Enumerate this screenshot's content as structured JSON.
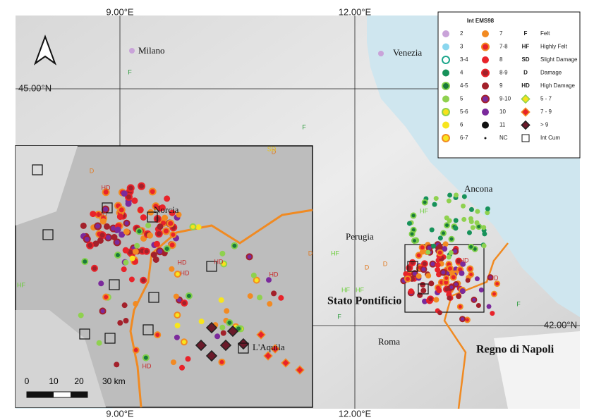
{
  "map": {
    "coords": {
      "top": [
        "9.00°E",
        "12.00°E"
      ],
      "bottom": [
        "9.00°E",
        "12.00°E"
      ],
      "left": "45.00°N",
      "right": "42.00°N"
    },
    "places": [
      "Milano",
      "Venezia",
      "Ancona",
      "Perugia",
      "Roma",
      "Norcia",
      "L'Aquila"
    ],
    "regions": [
      "Stato Pontificio",
      "Regno di Napoli"
    ],
    "scale": [
      "0",
      "10",
      "20",
      "30 km"
    ],
    "markers": [
      "F",
      "F",
      "HD",
      "HD",
      "HD",
      "HD",
      "HD",
      "HD",
      "HD",
      "D",
      "D",
      "D",
      "SD",
      "HF",
      "HF",
      "HF",
      "HF",
      "HF",
      "D",
      "D",
      "HD",
      "HD",
      "F",
      "F"
    ],
    "legend": {
      "title": "Int EMS98",
      "col1": [
        {
          "label": "2",
          "color": "#c9a3d9"
        },
        {
          "label": "3",
          "color": "#8ad6ee"
        },
        {
          "label": "3-4",
          "color": "#ffffff",
          "ring": "#1aa58a"
        },
        {
          "label": "4",
          "color": "#17925a"
        },
        {
          "label": "4-5",
          "color": "#1a7a3a",
          "ring": "#7fcf4a"
        },
        {
          "label": "5",
          "color": "#8fd14f"
        },
        {
          "label": "5-6",
          "color": "#f6e21a",
          "ring": "#8fd14f"
        },
        {
          "label": "6",
          "color": "#f7e51e"
        },
        {
          "label": "6-7",
          "color": "#f7e51e",
          "ring": "#f28a22"
        }
      ],
      "col2": [
        {
          "label": "7",
          "color": "#f28a22"
        },
        {
          "label": "7-8",
          "color": "#e8232a",
          "ring": "#f28a22"
        },
        {
          "label": "8",
          "color": "#e8232a"
        },
        {
          "label": "8-9",
          "color": "#a3212b",
          "ring": "#e8232a"
        },
        {
          "label": "9",
          "color": "#a3212b"
        },
        {
          "label": "9-10",
          "color": "#7b2a9c",
          "ring": "#a3212b"
        },
        {
          "label": "10",
          "color": "#7b2a9c"
        },
        {
          "label": "11",
          "color": "#111111"
        },
        {
          "label": "NC",
          "color": "#111111"
        }
      ],
      "col3": [
        {
          "symbol": "F",
          "label": "Felt",
          "color": "#2a9a3a"
        },
        {
          "symbol": "HF",
          "label": "Highly Felt",
          "color": "#66cc33"
        },
        {
          "symbol": "SD",
          "label": "Slight Damage",
          "color": "#e8c21a"
        },
        {
          "symbol": "D",
          "label": "Damage",
          "color": "#e07a22"
        },
        {
          "symbol": "HD",
          "label": "High Damage",
          "color": "#c62a2a"
        },
        {
          "label": "5 - 7",
          "color": "#f6e21a",
          "ring": "#8fd14f"
        },
        {
          "label": "7 - 9",
          "color": "#e8232a",
          "ring": "#f28a22"
        },
        {
          "label": "> 9",
          "color": "#6a1a2a",
          "ring": "#222222"
        },
        {
          "label": "Int Cum"
        }
      ]
    }
  }
}
